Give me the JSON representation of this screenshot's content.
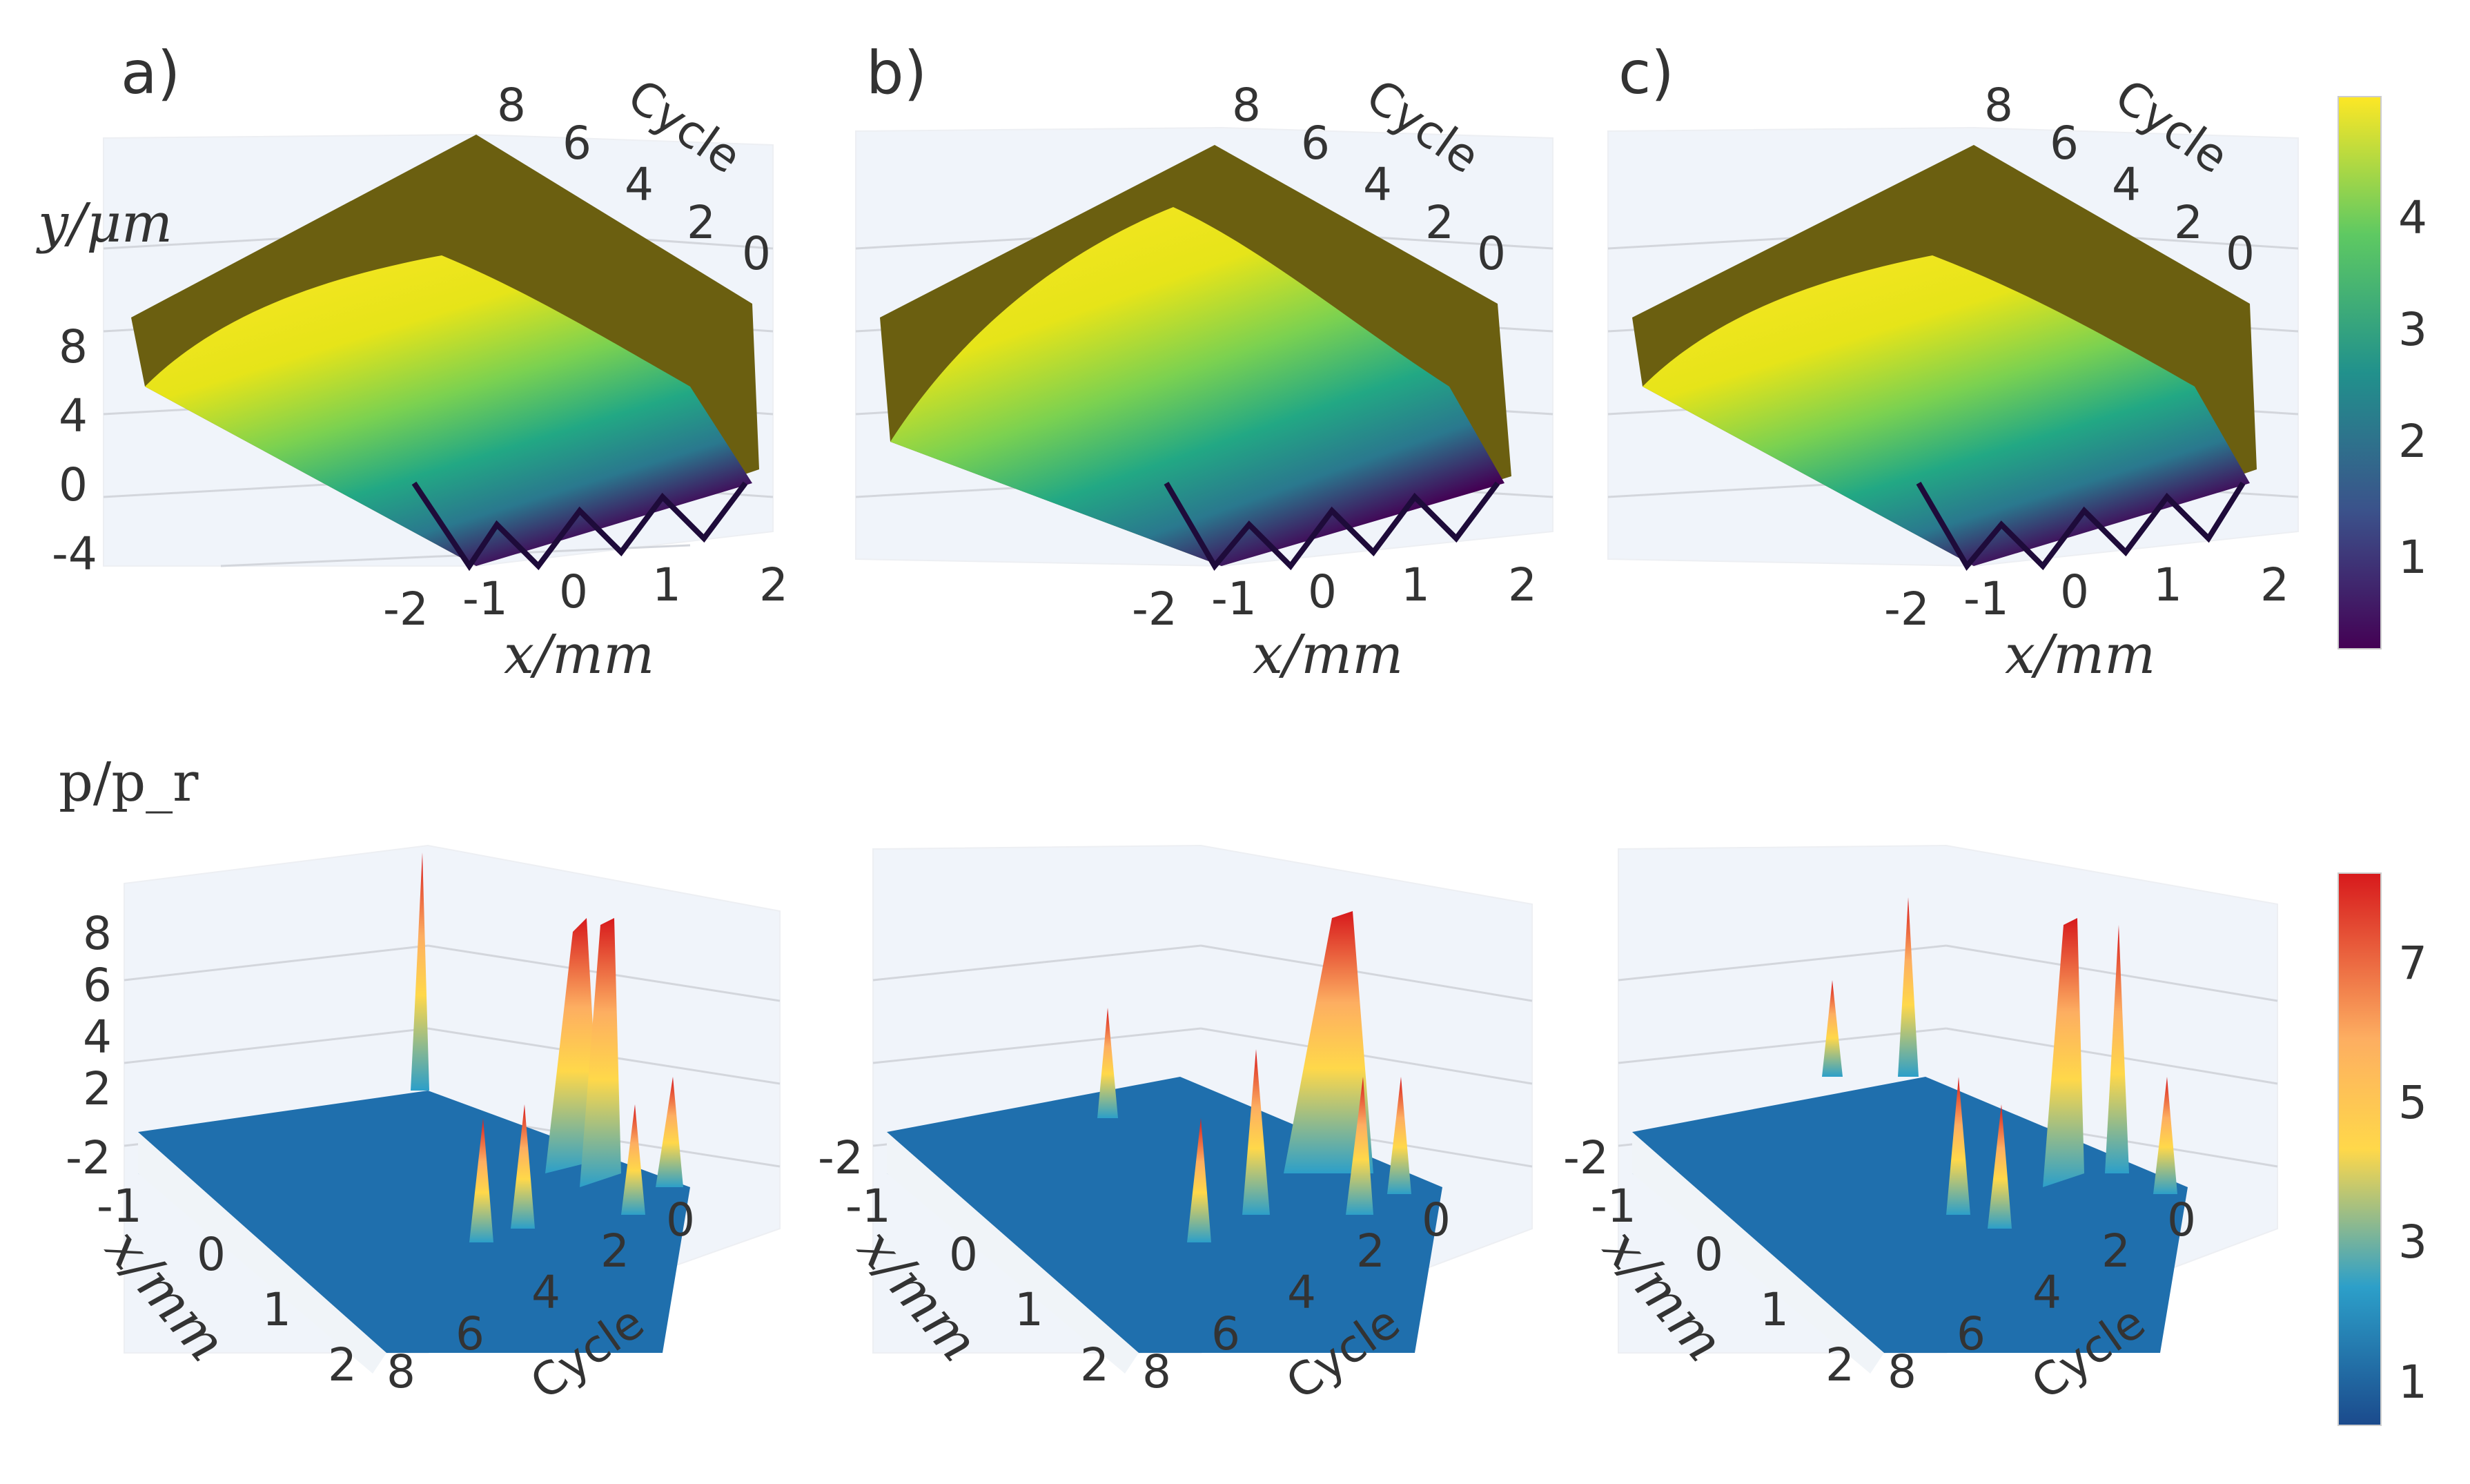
{
  "panels": [
    {
      "label": "a)"
    },
    {
      "label": "b)"
    },
    {
      "label": "c)"
    }
  ],
  "chart_data": [
    {
      "type": "surface",
      "title": "a)",
      "xlabel": "x/mm",
      "ylabel": "y/μm",
      "zlabel": "Cycle",
      "x_ticks": [
        "-2",
        "-1",
        "0",
        "1",
        "2"
      ],
      "y_ticks": [
        "8",
        "4",
        "0",
        "-4"
      ],
      "cycle_ticks": [
        "8",
        "6",
        "4",
        "2",
        "0"
      ],
      "colorscale": "viridis"
    },
    {
      "type": "surface",
      "title": "b)",
      "xlabel": "x/mm",
      "zlabel": "Cycle",
      "x_ticks": [
        "-2",
        "-1",
        "0",
        "1",
        "2"
      ],
      "cycle_ticks": [
        "8",
        "6",
        "4",
        "2",
        "0"
      ],
      "colorscale": "viridis"
    },
    {
      "type": "surface",
      "title": "c)",
      "xlabel": "x/mm",
      "zlabel": "Cycle",
      "x_ticks": [
        "-2",
        "-1",
        "0",
        "1",
        "2"
      ],
      "cycle_ticks": [
        "8",
        "6",
        "4",
        "2",
        "0"
      ],
      "colorscale": "viridis"
    },
    {
      "type": "surface",
      "title": "",
      "xlabel": "x/mm",
      "ylabel": "p/p_r",
      "zlabel": "Cycle",
      "x_ticks": [
        "-2",
        "-1",
        "0",
        "1",
        "2"
      ],
      "y_ticks": [
        "8",
        "6",
        "4",
        "2"
      ],
      "cycle_ticks": [
        "8",
        "6",
        "4",
        "2",
        "0"
      ],
      "colorscale": "rdylbu_r"
    },
    {
      "type": "surface",
      "title": "",
      "xlabel": "x/mm",
      "zlabel": "Cycle",
      "x_ticks": [
        "-2",
        "-1",
        "0",
        "1",
        "2"
      ],
      "cycle_ticks": [
        "8",
        "6",
        "4",
        "2",
        "0"
      ],
      "colorscale": "rdylbu_r"
    },
    {
      "type": "surface",
      "title": "",
      "xlabel": "x/mm",
      "zlabel": "Cycle",
      "x_ticks": [
        "-2",
        "-1",
        "0",
        "1",
        "2"
      ],
      "cycle_ticks": [
        "8",
        "6",
        "4",
        "2",
        "0"
      ],
      "colorscale": "rdylbu_r"
    }
  ],
  "colorbars": {
    "top": {
      "ticks": [
        "4",
        "3",
        "2",
        "1"
      ],
      "colors": [
        "#fde725",
        "#5ec962",
        "#21918c",
        "#3b528b",
        "#440154"
      ]
    },
    "bottom": {
      "ticks": [
        "7",
        "5",
        "3",
        "1"
      ],
      "colors": [
        "#d7191c",
        "#fdae61",
        "#ffd84a",
        "#2c9fc9",
        "#1b4a8c"
      ]
    }
  }
}
